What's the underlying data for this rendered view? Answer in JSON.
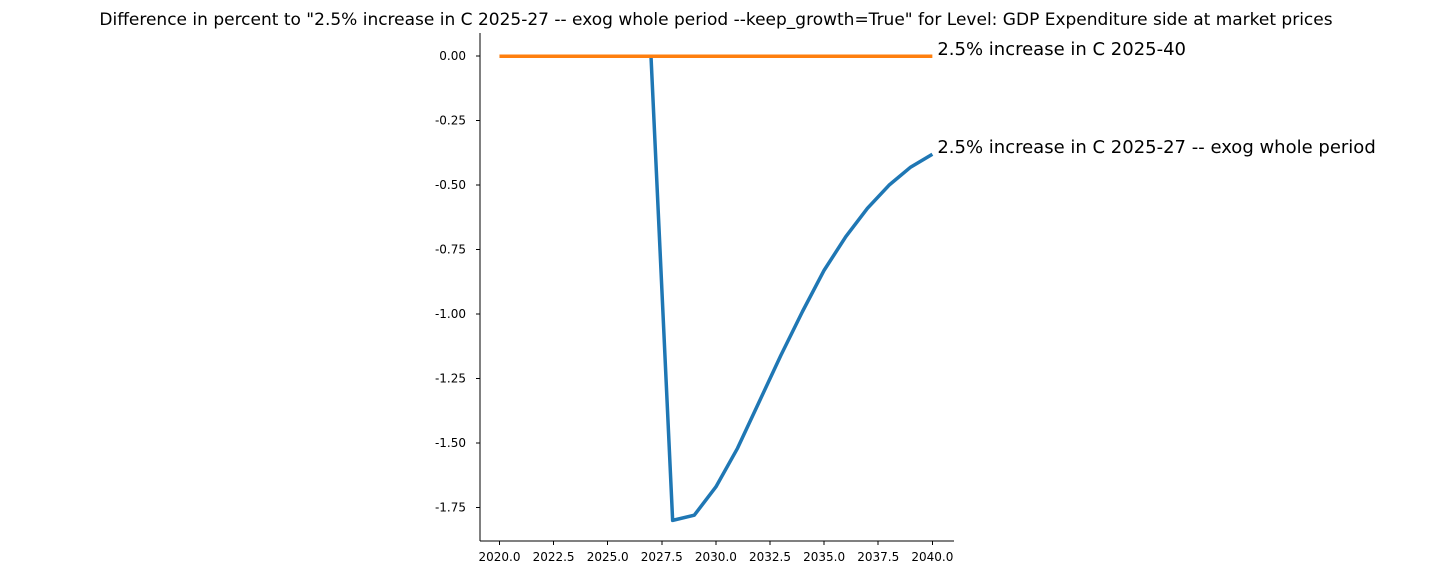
{
  "chart_data": {
    "type": "line",
    "title": "Difference in percent to \"2.5% increase in C 2025-27 -- exog whole period --keep_growth=True\" for Level: GDP Expenditure side at market prices",
    "xlabel": "",
    "ylabel": "",
    "xlim": [
      2019.1,
      2041.0
    ],
    "ylim": [
      -1.88,
      0.09
    ],
    "x_ticks": [
      2020,
      2022.5,
      2025,
      2027.5,
      2030,
      2032.5,
      2035,
      2037.5,
      2040
    ],
    "x_tick_labels": [
      "2020.0",
      "2022.5",
      "2025.0",
      "2027.5",
      "2030.0",
      "2032.5",
      "2035.0",
      "2037.5",
      "2040.0"
    ],
    "y_ticks": [
      0,
      -0.25,
      -0.5,
      -0.75,
      -1.0,
      -1.25,
      -1.5,
      -1.75
    ],
    "y_tick_labels": [
      "0.00",
      "-0.25",
      "-0.50",
      "-0.75",
      "-1.00",
      "-1.25",
      "-1.50",
      "-1.75"
    ],
    "grid": false,
    "legend": "none",
    "series": [
      {
        "name": "2.5% increase in C 2025-27 -- exog whole period",
        "color": "#1f77b4",
        "x": [
          2020,
          2021,
          2022,
          2023,
          2024,
          2025,
          2026,
          2027,
          2028,
          2029,
          2030,
          2031,
          2032,
          2033,
          2034,
          2035,
          2036,
          2037,
          2038,
          2039,
          2040
        ],
        "values": [
          0,
          0,
          0,
          0,
          0,
          0,
          0,
          0,
          -1.8,
          -1.78,
          -1.67,
          -1.52,
          -1.34,
          -1.16,
          -0.99,
          -0.83,
          -0.7,
          -0.59,
          -0.5,
          -0.43,
          -0.38
        ]
      },
      {
        "name": "2.5% increase in C 2025-40",
        "color": "#ff7f0e",
        "x": [
          2020,
          2021,
          2022,
          2023,
          2024,
          2025,
          2026,
          2027,
          2028,
          2029,
          2030,
          2031,
          2032,
          2033,
          2034,
          2035,
          2036,
          2037,
          2038,
          2039,
          2040
        ],
        "values": [
          0,
          0,
          0,
          0,
          0,
          0,
          0,
          0,
          0,
          0,
          0,
          0,
          0,
          0,
          0,
          0,
          0,
          0,
          0,
          0,
          0
        ]
      }
    ]
  }
}
